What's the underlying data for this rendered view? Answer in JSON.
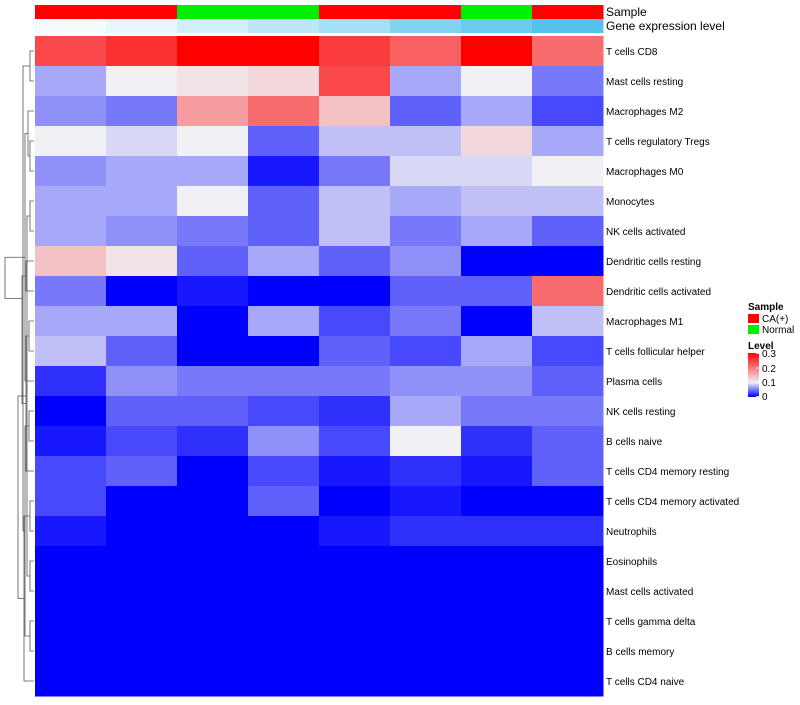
{
  "chart_data": {
    "type": "heatmap",
    "title": "",
    "columns": 8,
    "annotations": [
      {
        "name": "Sample",
        "values": [
          "CA(+)",
          "CA(+)",
          "Normal",
          "Normal",
          "CA(+)",
          "CA(+)",
          "Normal",
          "CA(+)"
        ]
      },
      {
        "name": "Gene expression level",
        "values": [
          0.02,
          0.04,
          0.08,
          0.12,
          0.16,
          0.22,
          0.26,
          0.3
        ]
      }
    ],
    "rows": [
      {
        "name": "T cells CD8",
        "values": [
          0.24,
          0.26,
          0.3,
          0.3,
          0.25,
          0.22,
          0.3,
          0.21
        ]
      },
      {
        "name": "Mast cells resting",
        "values": [
          0.07,
          0.1,
          0.11,
          0.12,
          0.24,
          0.07,
          0.1,
          0.05
        ]
      },
      {
        "name": "Macrophages M2",
        "values": [
          0.06,
          0.05,
          0.17,
          0.21,
          0.14,
          0.04,
          0.07,
          0.03
        ]
      },
      {
        "name": "T cells regulatory  Tregs",
        "values": [
          0.1,
          0.09,
          0.1,
          0.04,
          0.08,
          0.08,
          0.12,
          0.07
        ]
      },
      {
        "name": "Macrophages M0",
        "values": [
          0.06,
          0.07,
          0.07,
          0.01,
          0.05,
          0.09,
          0.09,
          0.1
        ]
      },
      {
        "name": "Monocytes",
        "values": [
          0.07,
          0.07,
          0.1,
          0.04,
          0.08,
          0.07,
          0.08,
          0.08
        ]
      },
      {
        "name": "NK cells activated",
        "values": [
          0.07,
          0.06,
          0.05,
          0.04,
          0.08,
          0.05,
          0.07,
          0.04
        ]
      },
      {
        "name": "Dendritic cells resting",
        "values": [
          0.14,
          0.11,
          0.04,
          0.07,
          0.04,
          0.06,
          0.0,
          0.0
        ]
      },
      {
        "name": "Dendritic cells activated",
        "values": [
          0.05,
          0.0,
          0.01,
          0.0,
          0.0,
          0.04,
          0.04,
          0.21
        ]
      },
      {
        "name": "Macrophages M1",
        "values": [
          0.07,
          0.07,
          0.0,
          0.07,
          0.03,
          0.05,
          0.0,
          0.08
        ]
      },
      {
        "name": "T cells follicular helper",
        "values": [
          0.08,
          0.04,
          0.0,
          0.0,
          0.04,
          0.03,
          0.07,
          0.03
        ]
      },
      {
        "name": "Plasma cells",
        "values": [
          0.02,
          0.06,
          0.05,
          0.05,
          0.05,
          0.06,
          0.06,
          0.04
        ]
      },
      {
        "name": "NK cells resting",
        "values": [
          0.0,
          0.04,
          0.04,
          0.03,
          0.02,
          0.07,
          0.05,
          0.05
        ]
      },
      {
        "name": "B cells naive",
        "values": [
          0.01,
          0.03,
          0.02,
          0.06,
          0.03,
          0.1,
          0.02,
          0.04
        ]
      },
      {
        "name": "T cells CD4 memory resting",
        "values": [
          0.03,
          0.04,
          0.0,
          0.03,
          0.01,
          0.02,
          0.01,
          0.04
        ]
      },
      {
        "name": "T cells CD4 memory activated",
        "values": [
          0.03,
          0.0,
          0.0,
          0.04,
          0.0,
          0.01,
          0.0,
          0.0
        ]
      },
      {
        "name": "Neutrophils",
        "values": [
          0.01,
          0.0,
          0.0,
          0.0,
          0.01,
          0.02,
          0.02,
          0.02
        ]
      },
      {
        "name": "Eosinophils",
        "values": [
          0.0,
          0.0,
          0.0,
          0.0,
          0.0,
          0.0,
          0.0,
          0.0
        ]
      },
      {
        "name": "Mast cells activated",
        "values": [
          0.0,
          0.0,
          0.0,
          0.0,
          0.0,
          0.0,
          0.0,
          0.0
        ]
      },
      {
        "name": "T cells gamma delta",
        "values": [
          0.0,
          0.0,
          0.0,
          0.0,
          0.0,
          0.0,
          0.0,
          0.0
        ]
      },
      {
        "name": "B cells memory",
        "values": [
          0.0,
          0.0,
          0.0,
          0.0,
          0.0,
          0.0,
          0.0,
          0.0
        ]
      },
      {
        "name": "T cells CD4 naive",
        "values": [
          0.0,
          0.0,
          0.0,
          0.0,
          0.0,
          0.0,
          0.0,
          0.0
        ]
      }
    ],
    "color_scale": {
      "min": 0,
      "mid": 0.1,
      "max": 0.3,
      "low_color": "#0000ff",
      "mid_color": "#f0f0f5",
      "high_color": "#ff0000"
    },
    "legend": {
      "sample_title": "Sample",
      "sample_items": [
        {
          "label": "CA(+)",
          "color": "#ff0000"
        },
        {
          "label": "Normal",
          "color": "#00ee00"
        }
      ],
      "level_title": "Level",
      "level_ticks": [
        {
          "value": 0.3,
          "label": "0.3"
        },
        {
          "value": 0.2,
          "label": "0.2"
        },
        {
          "value": 0.1,
          "label": "0.1"
        },
        {
          "value": 0,
          "label": "0"
        }
      ]
    },
    "annotation_colors": {
      "Sample": {
        "CA(+)": "#ff0000",
        "Normal": "#00ee00"
      },
      "expr_low": "#ffffff",
      "expr_high": "#55c3eb"
    },
    "dendrogram": [
      {
        "a": 0,
        "b": 1,
        "h": 30
      },
      {
        "a": 3,
        "b": 4,
        "h": 30
      },
      {
        "a": 5,
        "b": 6,
        "h": 30
      },
      {
        "a": 17,
        "b": 18,
        "h": 30
      },
      {
        "a": 19,
        "b": 20,
        "h": 30
      },
      {
        "a": 15,
        "b": 16,
        "h": 30
      },
      {
        "a": 9,
        "b": 10,
        "h": 29
      },
      {
        "a": 12,
        "b": 13,
        "h": 29
      },
      {
        "a": 2,
        "b": 23,
        "h": 28
      },
      {
        "a": 25,
        "b": 24,
        "h": 27
      },
      {
        "a": 7,
        "b": 8,
        "h": 26
      },
      {
        "a": 14,
        "b": 28,
        "h": 26
      },
      {
        "a": 26,
        "b": 29,
        "h": 25
      },
      {
        "a": 11,
        "b": 30,
        "h": 25
      },
      {
        "a": 27,
        "b": 21,
        "h": 24
      },
      {
        "a": 34,
        "b": 22,
        "h": 23
      },
      {
        "a": 32,
        "b": 33,
        "h": 22
      },
      {
        "a": 31,
        "b": 36,
        "h": 18
      },
      {
        "a": 37,
        "b": 35,
        "h": 5
      }
    ]
  }
}
